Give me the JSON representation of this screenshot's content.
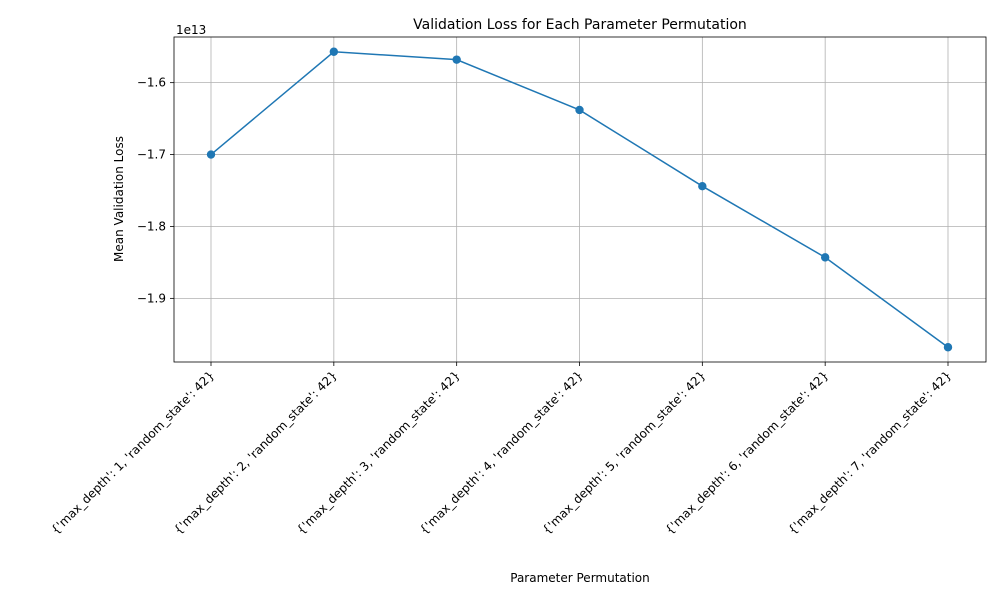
{
  "chart_data": {
    "type": "line",
    "title": "Validation Loss for Each Parameter Permutation",
    "xlabel": "Parameter Permutation",
    "ylabel": "Mean Validation Loss",
    "offset_text": "1e13",
    "categories": [
      "{'max_depth': 1, 'random_state': 42}",
      "{'max_depth': 2, 'random_state': 42}",
      "{'max_depth': 3, 'random_state': 42}",
      "{'max_depth': 4, 'random_state': 42}",
      "{'max_depth': 5, 'random_state': 42}",
      "{'max_depth': 6, 'random_state': 42}",
      "{'max_depth': 7, 'random_state': 42}"
    ],
    "series": [
      {
        "values": [
          -1.7,
          -1.557,
          -1.568,
          -1.638,
          -1.744,
          -1.843,
          -1.968
        ]
      }
    ],
    "yticks": [
      -1.9,
      -1.8,
      -1.7,
      -1.6
    ],
    "ytick_labels": [
      "−1.9",
      "−1.8",
      "−1.7",
      "−1.6"
    ],
    "ylim": [
      -1.9885,
      -1.5365
    ],
    "grid": true,
    "line_color": "#1f77b4",
    "marker": "circle"
  }
}
